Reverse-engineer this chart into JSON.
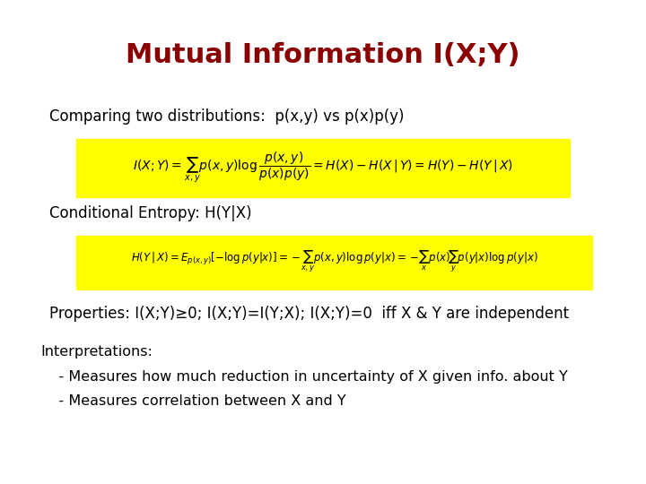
{
  "title": "Mutual Information I(X;Y)",
  "title_color": "#8B0000",
  "title_fontsize": 22,
  "title_fontweight": "bold",
  "bg_color": "#ffffff",
  "text_color": "#000000",
  "highlight_color": "#FFFF00",
  "line1": "Comparing two distributions:  p(x,y) vs p(x)p(y)",
  "line1_fontsize": 12,
  "line2": "Conditional Entropy: H(Y|X)",
  "line2_fontsize": 12,
  "line3": "Properties: I(X;Y)≥0; I(X;Y)=I(Y;X); I(X;Y)=0  iff X & Y are independent",
  "line3_fontsize": 12,
  "line4a": "Interpretations:",
  "line4b": "    - Measures how much reduction in uncertainty of X given info. about Y",
  "line4c": "    - Measures correlation between X and Y",
  "interp_fontsize": 11.5,
  "formula1": "$I(X;Y) = \\sum_{x,y} p(x,y)\\log \\dfrac{p(x,y)}{p(x)p(y)} = H(X) - H(X\\,|\\,Y) = H(Y) - H(Y\\,|\\,X)$",
  "formula1_fontsize": 10,
  "formula2": "$H(Y\\,|\\,X) = E_{p(x,y)}[{-\\log p(y|x)}] = -\\!\\sum_{x,y} p(x,y)\\log p(y|x) = -\\!\\sum_{x} p(x)\\!\\sum_{y} p(y|x)\\log p(y|x)$",
  "formula2_fontsize": 8.5
}
